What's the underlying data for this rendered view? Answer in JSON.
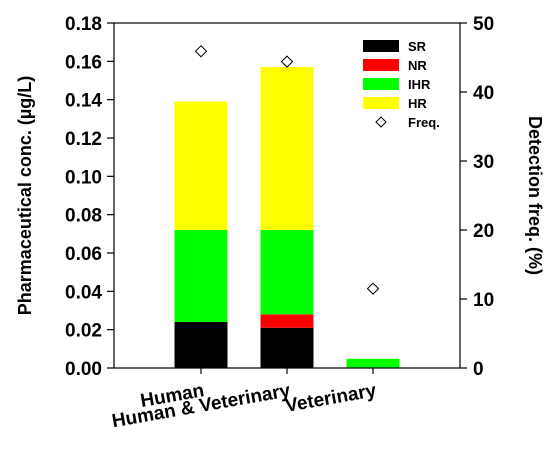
{
  "chart_data": {
    "type": "bar",
    "stacked": true,
    "categories": [
      "Human",
      "Human & Veterinary",
      "Veterinary"
    ],
    "series": [
      {
        "name": "SR",
        "color": "#000000",
        "values": [
          0.024,
          0.021,
          0.0
        ]
      },
      {
        "name": "NR",
        "color": "#ff0000",
        "values": [
          0.0,
          0.007,
          0.0
        ]
      },
      {
        "name": "IHR",
        "color": "#00ff00",
        "values": [
          0.048,
          0.044,
          0.0048
        ]
      },
      {
        "name": "HR",
        "color": "#ffff00",
        "values": [
          0.067,
          0.085,
          0.0
        ]
      }
    ],
    "secondary": {
      "name": "Freq.",
      "marker": "diamond-open",
      "values": [
        45.9,
        44.4,
        11.5
      ]
    },
    "ylabel": "Pharmaceutical conc. (µg/L)",
    "y2label": "Detection freq. (%)",
    "ylim": [
      0,
      0.18
    ],
    "y2lim": [
      0,
      50
    ],
    "yticks": [
      "0.00",
      "0.02",
      "0.04",
      "0.06",
      "0.08",
      "0.10",
      "0.12",
      "0.14",
      "0.16",
      "0.18"
    ],
    "y2ticks": [
      "0",
      "10",
      "20",
      "30",
      "40",
      "50"
    ],
    "legend_position": "top-right",
    "grid": false
  }
}
